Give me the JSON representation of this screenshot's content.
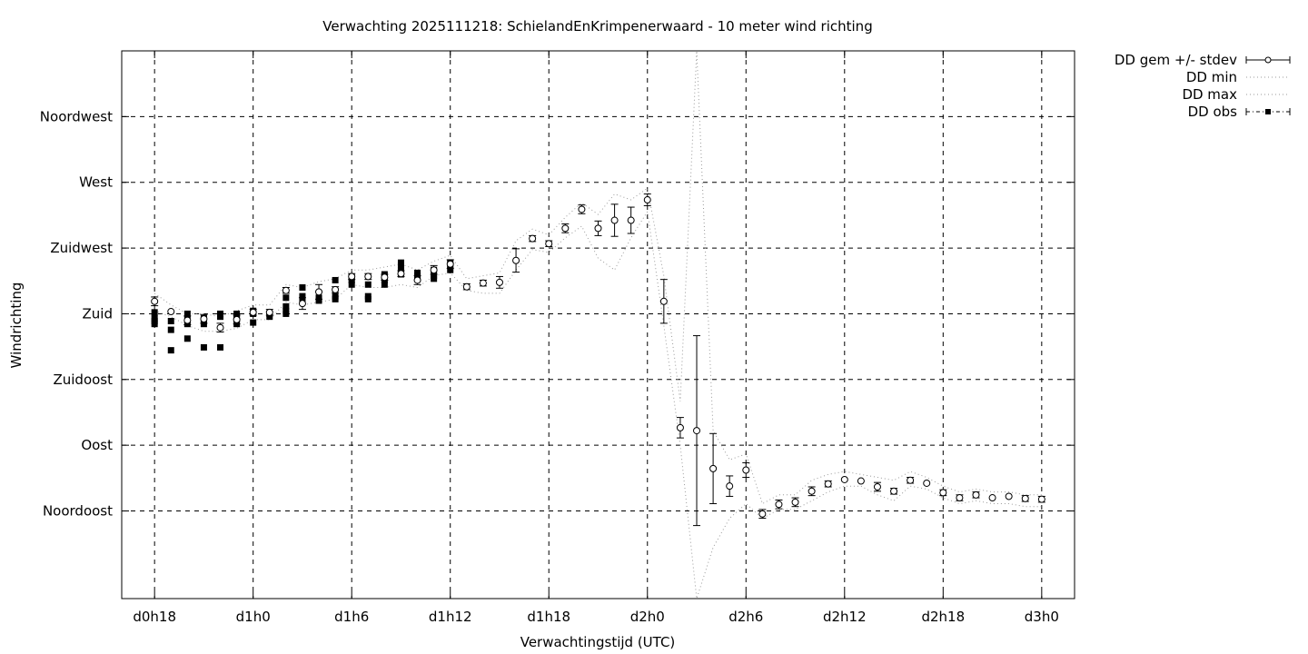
{
  "chart_data": {
    "type": "scatter",
    "title": "Verwachting 2025111218: SchielandEnKrimpenerwaard - 10 meter wind richting",
    "xlabel": "Verwachtingstijd (UTC)",
    "ylabel": "Windrichting",
    "x_unit": "hours since d0h18",
    "xlim": [
      -2,
      56
    ],
    "ylim": [
      -15,
      360
    ],
    "x_ticks": [
      {
        "x": 0,
        "label": "d0h18"
      },
      {
        "x": 6,
        "label": "d1h0"
      },
      {
        "x": 12,
        "label": "d1h6"
      },
      {
        "x": 18,
        "label": "d1h12"
      },
      {
        "x": 24,
        "label": "d1h18"
      },
      {
        "x": 30,
        "label": "d2h0"
      },
      {
        "x": 36,
        "label": "d2h6"
      },
      {
        "x": 42,
        "label": "d2h12"
      },
      {
        "x": 48,
        "label": "d2h18"
      },
      {
        "x": 54,
        "label": "d3h0"
      }
    ],
    "y_ticks": [
      {
        "y": 315,
        "label": "Noordwest"
      },
      {
        "y": 270,
        "label": "West"
      },
      {
        "y": 225,
        "label": "Zuidwest"
      },
      {
        "y": 180,
        "label": "Zuid"
      },
      {
        "y": 135,
        "label": "Zuidoost"
      },
      {
        "y": 90,
        "label": "Oost"
      },
      {
        "y": 45,
        "label": "Noordoost"
      }
    ],
    "grid": true,
    "legend_position": "outside-top-right",
    "series": [
      {
        "name": "DD gem +/- stdev",
        "style": "open-circle-errorbars",
        "points": [
          [
            0,
            188.5,
            3
          ],
          [
            1,
            181.5,
            1
          ],
          [
            2,
            175.5,
            3
          ],
          [
            3,
            176.5,
            3
          ],
          [
            4,
            170.5,
            3
          ],
          [
            5,
            176,
            3
          ],
          [
            6,
            181,
            2
          ],
          [
            7,
            181,
            2
          ],
          [
            8,
            196,
            2
          ],
          [
            9,
            187,
            4
          ],
          [
            10,
            195,
            5
          ],
          [
            11,
            196.5,
            2
          ],
          [
            12,
            205.5,
            2
          ],
          [
            13,
            205.5,
            2
          ],
          [
            14,
            205,
            2
          ],
          [
            15,
            207.5,
            2
          ],
          [
            16,
            203,
            3
          ],
          [
            17,
            210,
            3
          ],
          [
            18,
            214,
            3
          ],
          [
            19,
            198.5,
            2
          ],
          [
            20,
            201,
            2
          ],
          [
            21,
            201.5,
            4
          ],
          [
            22,
            216.5,
            8
          ],
          [
            23,
            231.5,
            2
          ],
          [
            24,
            228,
            2
          ],
          [
            25,
            238.5,
            3
          ],
          [
            26,
            251.5,
            3
          ],
          [
            27,
            238.5,
            5
          ],
          [
            28,
            244,
            11
          ],
          [
            29,
            244,
            9
          ],
          [
            30,
            258,
            4
          ],
          [
            31,
            188.5,
            15
          ],
          [
            32,
            102,
            7
          ],
          [
            33,
            100,
            65
          ],
          [
            34,
            74,
            24
          ],
          [
            35,
            62,
            7
          ],
          [
            36,
            73,
            5
          ],
          [
            37,
            43,
            3
          ],
          [
            38,
            49.5,
            3
          ],
          [
            39,
            51,
            3
          ],
          [
            40,
            58.5,
            3
          ],
          [
            41,
            63.5,
            2
          ],
          [
            42,
            66.5,
            1
          ],
          [
            43,
            65.5,
            1
          ],
          [
            44,
            61.5,
            3
          ],
          [
            45,
            58.5,
            2
          ],
          [
            46,
            66,
            2
          ],
          [
            47,
            64,
            1
          ],
          [
            48,
            57.5,
            2
          ],
          [
            49,
            54,
            2
          ],
          [
            50,
            56,
            2
          ],
          [
            51,
            54,
            1.5
          ],
          [
            52,
            55,
            1
          ],
          [
            53,
            53.5,
            2
          ],
          [
            54,
            53,
            2
          ]
        ]
      },
      {
        "name": "DD min",
        "style": "dotted",
        "points": [
          [
            0,
            182
          ],
          [
            1,
            178
          ],
          [
            2,
            172
          ],
          [
            3,
            168
          ],
          [
            4,
            168
          ],
          [
            5,
            170
          ],
          [
            6,
            176
          ],
          [
            7,
            176
          ],
          [
            8,
            188
          ],
          [
            9,
            186
          ],
          [
            10,
            188
          ],
          [
            11,
            190
          ],
          [
            12,
            200
          ],
          [
            13,
            198
          ],
          [
            14,
            198
          ],
          [
            15,
            200
          ],
          [
            16,
            198
          ],
          [
            17,
            206
          ],
          [
            18,
            208
          ],
          [
            19,
            196
          ],
          [
            20,
            194
          ],
          [
            21,
            194
          ],
          [
            22,
            210
          ],
          [
            23,
            224
          ],
          [
            24,
            222
          ],
          [
            25,
            232
          ],
          [
            26,
            240
          ],
          [
            27,
            218
          ],
          [
            28,
            210
          ],
          [
            29,
            232
          ],
          [
            30,
            250
          ],
          [
            31,
            172
          ],
          [
            32,
            90
          ],
          [
            33,
            -15
          ],
          [
            34,
            20
          ],
          [
            35,
            40
          ],
          [
            36,
            50
          ],
          [
            37,
            40
          ],
          [
            38,
            46
          ],
          [
            39,
            46
          ],
          [
            40,
            52
          ],
          [
            41,
            58
          ],
          [
            42,
            62
          ],
          [
            43,
            62
          ],
          [
            44,
            56
          ],
          [
            45,
            52
          ],
          [
            46,
            62
          ],
          [
            47,
            60
          ],
          [
            48,
            54
          ],
          [
            49,
            50
          ],
          [
            50,
            52
          ],
          [
            51,
            50
          ],
          [
            52,
            50
          ],
          [
            53,
            48
          ],
          [
            54,
            48
          ]
        ]
      },
      {
        "name": "DD max",
        "style": "dotted",
        "points": [
          [
            0,
            194
          ],
          [
            1,
            186
          ],
          [
            2,
            180
          ],
          [
            3,
            180
          ],
          [
            4,
            178
          ],
          [
            5,
            182
          ],
          [
            6,
            186
          ],
          [
            7,
            186
          ],
          [
            8,
            200
          ],
          [
            9,
            198
          ],
          [
            10,
            202
          ],
          [
            11,
            204
          ],
          [
            12,
            210
          ],
          [
            13,
            210
          ],
          [
            14,
            212
          ],
          [
            15,
            214
          ],
          [
            16,
            210
          ],
          [
            17,
            216
          ],
          [
            18,
            220
          ],
          [
            19,
            204
          ],
          [
            20,
            206
          ],
          [
            21,
            208
          ],
          [
            22,
            230
          ],
          [
            23,
            238
          ],
          [
            24,
            234
          ],
          [
            25,
            246
          ],
          [
            26,
            256
          ],
          [
            27,
            248
          ],
          [
            28,
            262
          ],
          [
            29,
            258
          ],
          [
            30,
            266
          ],
          [
            31,
            206
          ],
          [
            32,
            120
          ],
          [
            33,
            360
          ],
          [
            34,
            100
          ],
          [
            35,
            80
          ],
          [
            36,
            84
          ],
          [
            37,
            50
          ],
          [
            38,
            56
          ],
          [
            39,
            56
          ],
          [
            40,
            66
          ],
          [
            41,
            70
          ],
          [
            42,
            72
          ],
          [
            43,
            70
          ],
          [
            44,
            68
          ],
          [
            45,
            66
          ],
          [
            46,
            72
          ],
          [
            47,
            68
          ],
          [
            48,
            62
          ],
          [
            49,
            58
          ],
          [
            50,
            60
          ],
          [
            51,
            58
          ],
          [
            52,
            58
          ],
          [
            53,
            56
          ],
          [
            54,
            56
          ]
        ]
      },
      {
        "name": "DD obs",
        "style": "filled-square",
        "points": [
          [
            0,
            181
          ],
          [
            0,
            177
          ],
          [
            0,
            175
          ],
          [
            0,
            173
          ],
          [
            1,
            175
          ],
          [
            1,
            169
          ],
          [
            1,
            155
          ],
          [
            2,
            180
          ],
          [
            2,
            176
          ],
          [
            2,
            173
          ],
          [
            2,
            163
          ],
          [
            3,
            177
          ],
          [
            3,
            175
          ],
          [
            3,
            173
          ],
          [
            3,
            157
          ],
          [
            4,
            180
          ],
          [
            4,
            178
          ],
          [
            4,
            157
          ],
          [
            5,
            180
          ],
          [
            5,
            178
          ],
          [
            5,
            176
          ],
          [
            5,
            173
          ],
          [
            6,
            182
          ],
          [
            6,
            180
          ],
          [
            6,
            174
          ],
          [
            7,
            180
          ],
          [
            7,
            178
          ],
          [
            8,
            191
          ],
          [
            8,
            185
          ],
          [
            8,
            182
          ],
          [
            8,
            180
          ],
          [
            9,
            198
          ],
          [
            9,
            192
          ],
          [
            9,
            188
          ],
          [
            10,
            191
          ],
          [
            10,
            189
          ],
          [
            11,
            203
          ],
          [
            11,
            192
          ],
          [
            11,
            190
          ],
          [
            12,
            205
          ],
          [
            12,
            203
          ],
          [
            12,
            200
          ],
          [
            13,
            200
          ],
          [
            13,
            192
          ],
          [
            13,
            190
          ],
          [
            14,
            207
          ],
          [
            14,
            205
          ],
          [
            14,
            203
          ],
          [
            14,
            200
          ],
          [
            15,
            215
          ],
          [
            15,
            213
          ],
          [
            15,
            210
          ],
          [
            15,
            207
          ],
          [
            16,
            208
          ],
          [
            16,
            206
          ],
          [
            16,
            204
          ],
          [
            17,
            210
          ],
          [
            17,
            206
          ],
          [
            17,
            204
          ],
          [
            18,
            210
          ],
          [
            18,
            213
          ],
          [
            18,
            215
          ]
        ]
      }
    ]
  }
}
